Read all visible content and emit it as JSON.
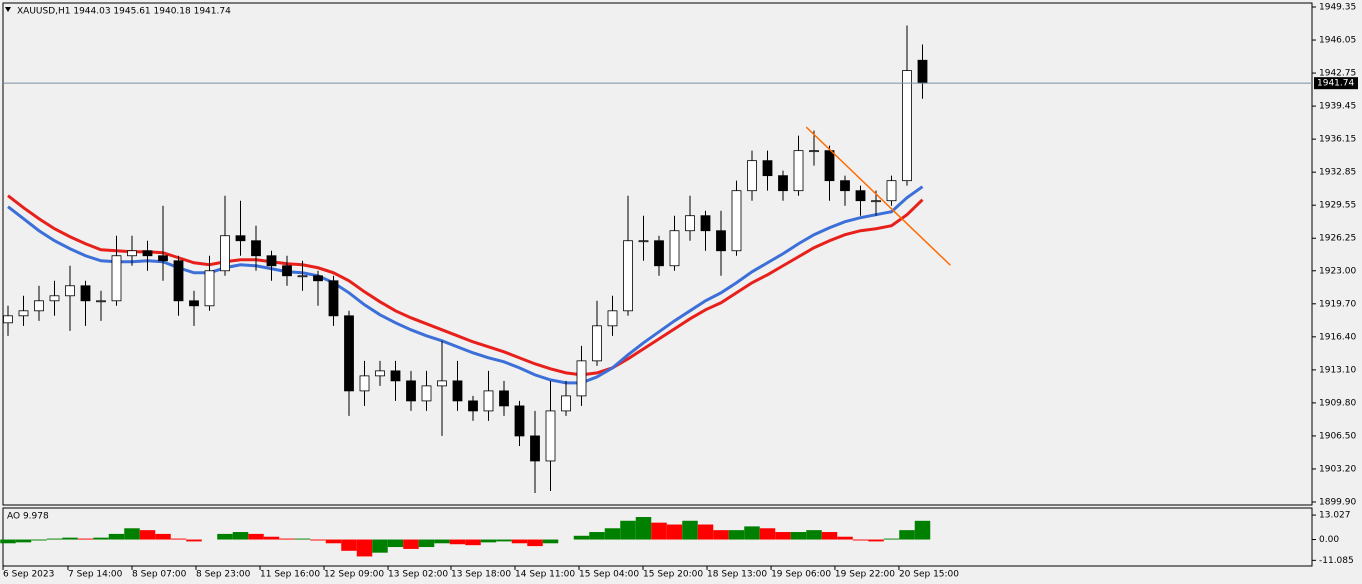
{
  "chart_data": [
    {
      "type": "candlestick",
      "title": "XAUUSD,H1 1944.03 1945.61 1940.18 1941.74",
      "open": [
        1917.8,
        1918.5,
        1919,
        1920,
        1920.5,
        1921.5,
        1920,
        1920,
        1924.5,
        1925,
        1924.5,
        1924,
        1920,
        1919.5,
        1923,
        1926.5,
        1926,
        1924.5,
        1923.5,
        1922.5,
        1922.5,
        1922,
        1918.5,
        1911,
        1912.5,
        1913,
        1912,
        1910,
        1911.5,
        1912,
        1910,
        1909,
        1911,
        1909.5,
        1906.5,
        1904,
        1909,
        1910.5,
        1914,
        1917.5,
        1919,
        1926,
        1926,
        1923.5,
        1927,
        1928.5,
        1927,
        1925,
        1931,
        1934,
        1932.5,
        1931,
        1935,
        1935,
        1932,
        1931,
        1930,
        1930,
        1932,
        1944.03
      ],
      "high": [
        1919.5,
        1920.5,
        1921.5,
        1922,
        1923.5,
        1922,
        1921,
        1926.5,
        1926.5,
        1926,
        1929.5,
        1924.5,
        1921,
        1924.5,
        1930.5,
        1930,
        1927.5,
        1925,
        1924.5,
        1924,
        1923,
        1922.5,
        1919,
        1914,
        1914,
        1914,
        1913,
        1913,
        1916,
        1914,
        1910.5,
        1913,
        1912,
        1910,
        1909,
        1912,
        1912,
        1915.5,
        1920,
        1920.5,
        1930.5,
        1928.5,
        1926.5,
        1928.5,
        1930.5,
        1929,
        1929,
        1932,
        1935,
        1935,
        1933,
        1936.5,
        1937,
        1935.5,
        1932.5,
        1931.5,
        1931,
        1932.5,
        1947.5,
        1945.61
      ],
      "low": [
        1916.5,
        1917.5,
        1918,
        1918.5,
        1917,
        1917.5,
        1918,
        1919.5,
        1923.5,
        1923,
        1922,
        1918.5,
        1917.5,
        1919,
        1922.5,
        1924.5,
        1923,
        1922,
        1921.5,
        1921,
        1919.5,
        1917.5,
        1908.5,
        1909.5,
        1911.5,
        1910,
        1909,
        1909,
        1906.5,
        1909,
        1908,
        1908,
        1908.5,
        1905.5,
        1900.8,
        1901,
        1908.5,
        1909.5,
        1913.5,
        1916.5,
        1918.5,
        1924,
        1922.5,
        1923,
        1926,
        1925,
        1922.5,
        1924.5,
        1930,
        1931,
        1930,
        1930.5,
        1933.5,
        1930,
        1929.5,
        1928.5,
        1928.5,
        1929.5,
        1931.5,
        1940.18
      ],
      "close": [
        1918.5,
        1919,
        1920,
        1920.5,
        1921.5,
        1920,
        1920,
        1924.5,
        1925,
        1924.5,
        1924,
        1920,
        1919.5,
        1923,
        1926.5,
        1926,
        1924.5,
        1923.5,
        1922.5,
        1922.5,
        1922,
        1918.5,
        1911,
        1912.5,
        1913,
        1912,
        1910,
        1911.5,
        1912,
        1910,
        1909,
        1911,
        1909.5,
        1906.5,
        1904,
        1909,
        1910.5,
        1914,
        1917.5,
        1919,
        1926,
        1926,
        1923.5,
        1927,
        1928.5,
        1927,
        1925,
        1931,
        1934,
        1932.5,
        1931,
        1935,
        1935,
        1932,
        1931,
        1930,
        1930,
        1932,
        1943,
        1941.74
      ],
      "series": [
        {
          "color": "#e8201c",
          "values": [
            1930.5,
            1929.3,
            1928.2,
            1927.2,
            1926.4,
            1925.7,
            1925.1,
            1925,
            1924.9,
            1924.9,
            1924.8,
            1924.3,
            1923.8,
            1923.6,
            1923.9,
            1924.1,
            1924.1,
            1923.9,
            1923.7,
            1923.6,
            1923.3,
            1922.8,
            1922,
            1920.9,
            1919.9,
            1919,
            1918.3,
            1917.7,
            1917.1,
            1916.5,
            1915.9,
            1915.4,
            1914.9,
            1914.3,
            1913.7,
            1913.2,
            1912.8,
            1912.6,
            1912.8,
            1913.3,
            1914.2,
            1915.2,
            1916.2,
            1917.2,
            1918.2,
            1919.1,
            1919.8,
            1920.8,
            1921.8,
            1922.6,
            1923.5,
            1924.4,
            1925.3,
            1926,
            1926.6,
            1927,
            1927.2,
            1927.5,
            1928.6,
            1930.1
          ]
        },
        {
          "color": "#3c6fd8",
          "values": [
            1929.4,
            1928.2,
            1927,
            1926,
            1925.2,
            1924.5,
            1924,
            1923.9,
            1923.9,
            1924,
            1923.9,
            1923.3,
            1922.8,
            1922.8,
            1923.3,
            1923.6,
            1923.5,
            1923.2,
            1922.9,
            1922.8,
            1922.5,
            1921.8,
            1920.8,
            1919.6,
            1918.6,
            1917.8,
            1917.1,
            1916.5,
            1916,
            1915.4,
            1914.8,
            1914.3,
            1913.9,
            1913.3,
            1912.6,
            1912.1,
            1911.8,
            1911.8,
            1912.4,
            1913.3,
            1914.6,
            1915.8,
            1916.9,
            1918,
            1919,
            1920,
            1920.8,
            1921.8,
            1922.9,
            1923.8,
            1924.7,
            1925.7,
            1926.6,
            1927.3,
            1927.9,
            1928.3,
            1928.6,
            1928.9,
            1930.3,
            1931.4
          ]
        }
      ],
      "trendline": {
        "x": [
          51.5,
          60.8
        ],
        "y": [
          1937.35,
          1923.55
        ],
        "color": "#ff6a00"
      },
      "current_price": 1941.74,
      "ylim": [
        1899.6,
        1949.75
      ],
      "yticks": [
        1949.35,
        1946.05,
        1942.75,
        1939.45,
        1936.15,
        1932.85,
        1929.55,
        1926.25,
        {
          "value": 1923,
          "label": "1923.00"
        },
        {
          "value": 1919.7,
          "label": "1919.70"
        },
        {
          "value": 1916.4,
          "label": "1916.40"
        },
        {
          "value": 1913.1,
          "label": "1913.10"
        },
        {
          "value": 1909.8,
          "label": "1909.80"
        },
        {
          "value": 1906.5,
          "label": "1906.50"
        },
        {
          "value": 1903.2,
          "label": "1903.20"
        },
        {
          "value": 1899.9,
          "label": "1899.90"
        }
      ],
      "xticks": [
        {
          "value": -0.32,
          "label": "6 Sep 2023"
        },
        {
          "value": 3.87,
          "label": "7 Sep 14:00"
        },
        {
          "value": 8.0,
          "label": "8 Sep 07:00"
        },
        {
          "value": 12.13,
          "label": "8 Sep 23:00"
        },
        {
          "value": 16.26,
          "label": "11 Sep 16:00"
        },
        {
          "value": 20.39,
          "label": "12 Sep 09:00"
        },
        {
          "value": 24.52,
          "label": "13 Sep 02:00"
        },
        {
          "value": 28.58,
          "label": "13 Sep 18:00"
        },
        {
          "value": 32.71,
          "label": "14 Sep 11:00"
        },
        {
          "value": 36.84,
          "label": "15 Sep 04:00"
        },
        {
          "value": 40.97,
          "label": "15 Sep 20:00"
        },
        {
          "value": 45.1,
          "label": "18 Sep 13:00"
        },
        {
          "value": 49.23,
          "label": "19 Sep 06:00"
        },
        {
          "value": 53.35,
          "label": "19 Sep 22:00"
        },
        {
          "value": 57.48,
          "label": "20 Sep 15:00"
        }
      ]
    },
    {
      "type": "histogram-oscillator",
      "title": "AO 9.978",
      "values": [
        -2,
        -1.5,
        -0.5,
        0.5,
        1,
        0.5,
        1,
        3,
        6,
        5,
        3,
        0.5,
        -1,
        0,
        3,
        4,
        3,
        1.5,
        0.5,
        0.5,
        -0.5,
        -2,
        -6,
        -9,
        -7,
        -4,
        -5,
        -4,
        -2,
        -2.5,
        -3,
        -1.5,
        -1,
        -2,
        -3.5,
        -2,
        0,
        2,
        4,
        6,
        10,
        12,
        9,
        8,
        10,
        8,
        5,
        5,
        7,
        6,
        4,
        4,
        5,
        4,
        1.5,
        -0.5,
        -1,
        0.5,
        5,
        9.978
      ],
      "up_color": "#008000",
      "down_color": "#ff0000",
      "ylim": [
        -14.1,
        16.8
      ],
      "yticks": [
        13.027,
        {
          "value": 0,
          "label": "0.00"
        },
        -11.085
      ]
    }
  ]
}
